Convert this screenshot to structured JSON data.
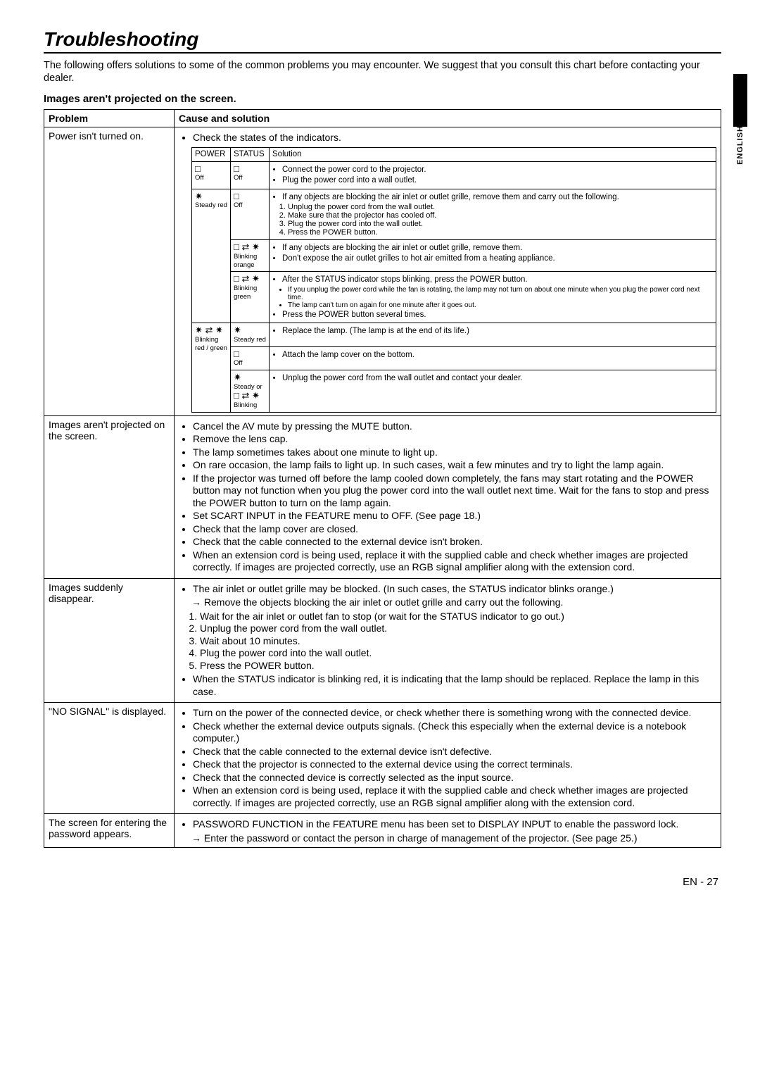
{
  "sideTab": {
    "text": "ENGLISH",
    "bg": "#000000"
  },
  "title": "Troubleshooting",
  "intro": "The following offers solutions to some of the common problems you may encounter. We suggest that you consult this chart before contacting your dealer.",
  "sectionHeading": "Images aren't projected on the screen.",
  "headers": {
    "problem": "Problem",
    "cause": "Cause and solution"
  },
  "indicatorTable": {
    "headers": {
      "power": "POWER",
      "status": "STATUS",
      "solution": "Solution"
    },
    "rows": [
      {
        "power": {
          "glyph": "□",
          "label": "Off"
        },
        "status": {
          "glyph": "□",
          "label": "Off"
        },
        "bullets": [
          "Connect the power cord to the projector.",
          "Plug the power cord into a wall outlet."
        ]
      },
      {
        "powerSpanStart": true,
        "powerRowspan": 3,
        "power": {
          "glyph": "✷",
          "label": "Steady red"
        },
        "status": {
          "glyph": "□",
          "label": "Off"
        },
        "bullets": [
          "If any objects are blocking the air inlet or outlet grille, remove them and carry out the following."
        ],
        "ordered": [
          "Unplug the power cord from the wall outlet.",
          "Make sure that the projector has cooled off.",
          "Plug the power cord into the wall outlet.",
          "Press the POWER button."
        ]
      },
      {
        "status": {
          "glyph": "□ ⇄ ✷",
          "label": "Blinking orange"
        },
        "bullets": [
          "If any objects are blocking the air inlet or outlet grille, remove them.",
          "Don't expose the air outlet grilles to hot air emitted from a heating appliance."
        ]
      },
      {
        "status": {
          "glyph": "□ ⇄ ✷",
          "label": "Blinking green"
        },
        "bullets": [
          "After the STATUS indicator stops blinking, press the POWER button."
        ],
        "tiny": [
          "If you unplug the power cord while the fan is rotating, the lamp may not turn on about one minute when you plug the power cord next time.",
          "The lamp can't turn on again for one minute after it goes out."
        ],
        "bulletsAfter": [
          "Press the POWER button several times."
        ]
      },
      {
        "powerSpanStart": true,
        "powerRowspan": 3,
        "power": {
          "glyph": "✷ ⇄ ✷",
          "label": "Blinking red / green"
        },
        "status": {
          "glyph": "✷",
          "label": "Steady red"
        },
        "bullets": [
          "Replace the lamp. (The lamp is at the end of its life.)"
        ]
      },
      {
        "status": {
          "glyph": "□",
          "label": "Off"
        },
        "bullets": [
          "Attach the lamp cover on the bottom."
        ]
      },
      {
        "status": {
          "glyph": "✷",
          "label": "Steady or",
          "glyph2": "□ ⇄ ✷",
          "label2": "Blinking"
        },
        "bullets": [
          "Unplug the power cord from the wall outlet and contact your dealer."
        ]
      }
    ]
  },
  "rows": [
    {
      "problem": "Power isn't turned on.",
      "lead": "Check the states of the indicators.",
      "hasIndicatorTable": true
    },
    {
      "problem": "Images aren't projected on the screen.",
      "bullets": [
        "Cancel the AV mute by pressing the MUTE button.",
        "Remove the lens cap.",
        "The lamp sometimes takes about one minute to light up.",
        "On rare occasion, the lamp fails to light up. In such cases, wait a few minutes and try to light the lamp again.",
        "If the projector was turned off before the lamp cooled down completely, the fans may start rotating and the POWER button may not function when you plug the power cord into the wall outlet next time. Wait for the fans to stop and press the POWER button to turn on the lamp again.",
        "Set SCART INPUT in the FEATURE menu to OFF. (See page 18.)",
        "Check that the lamp cover are closed.",
        "Check that the cable connected to the external device isn't broken.",
        "When an extension cord is being used, replace it with the supplied cable and check whether images are projected correctly. If images are projected correctly, use an RGB signal amplifier along with the extension cord."
      ]
    },
    {
      "problem": "Images suddenly disappear.",
      "bullets": [
        "The air inlet or outlet grille may be blocked. (In such cases, the STATUS indicator blinks orange.)"
      ],
      "arrow": "→ Remove the objects blocking the air inlet or outlet grille and carry out the following.",
      "ordered": [
        "Wait for the air inlet or outlet fan to stop (or wait for the STATUS indicator to go out.)",
        "Unplug the power cord from the wall outlet.",
        "Wait about 10 minutes.",
        "Plug the power cord into the wall outlet.",
        "Press the POWER button."
      ],
      "bulletsAfter": [
        "When the STATUS indicator is blinking red, it is indicating that the lamp should be replaced. Replace the lamp in this case."
      ]
    },
    {
      "problem": "\"NO SIGNAL\" is displayed.",
      "bullets": [
        "Turn on the power of the connected device, or check whether there is something wrong with the connected device.",
        "Check whether the external device outputs signals. (Check this especially when the external device is a notebook computer.)",
        "Check that the cable connected to the external device isn't defective.",
        "Check that the projector is connected to the external device using the correct terminals.",
        "Check that the connected device is correctly selected as the input source.",
        "When an extension cord is being used, replace it with the supplied cable and check whether images are projected correctly. If images are projected correctly, use an RGB signal amplifier along with the extension cord."
      ]
    },
    {
      "problem": "The screen for entering the password appears.",
      "bullets": [
        "PASSWORD FUNCTION in the FEATURE menu has been set to DISPLAY INPUT to enable the password lock."
      ],
      "arrow": "→ Enter the password or contact the person in charge of management of the projector. (See page 25.)"
    }
  ],
  "footer": "EN - 27"
}
